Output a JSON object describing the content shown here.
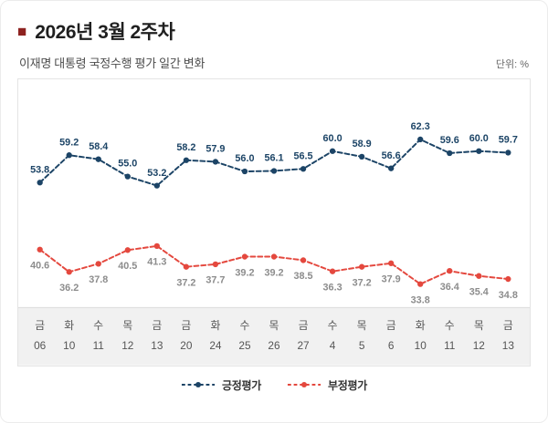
{
  "header": {
    "bullet": "■",
    "title": "2026년 3월 2주차",
    "subtitle": "이재명 대통령 국정수행 평가 일간 변화",
    "unit_label": "단위: %"
  },
  "chart_data": {
    "type": "line",
    "title": "이재명 대통령 국정수행 평가 일간 변화",
    "unit": "%",
    "days": [
      "금",
      "화",
      "수",
      "목",
      "금",
      "금",
      "화",
      "수",
      "목",
      "금",
      "수",
      "목",
      "금",
      "화",
      "수",
      "목",
      "금"
    ],
    "dates": [
      "06",
      "10",
      "11",
      "12",
      "13",
      "20",
      "24",
      "25",
      "26",
      "27",
      "4",
      "5",
      "6",
      "10",
      "11",
      "12",
      "13"
    ],
    "series": [
      {
        "name": "긍정평가",
        "color": "#1c4466",
        "label_color": "#1c4466",
        "label_position": "above",
        "values": [
          53.8,
          59.2,
          58.4,
          55.0,
          53.2,
          58.2,
          57.9,
          56.0,
          56.1,
          56.5,
          60.0,
          58.9,
          56.6,
          62.3,
          59.6,
          60.0,
          59.7
        ]
      },
      {
        "name": "부정평가",
        "color": "#e4483e",
        "label_color": "#8c8c8c",
        "label_position": "below",
        "values": [
          40.6,
          36.2,
          37.8,
          40.5,
          41.3,
          37.2,
          37.7,
          39.2,
          39.2,
          38.5,
          36.3,
          37.2,
          37.9,
          33.8,
          36.4,
          35.4,
          34.8
        ]
      }
    ],
    "ylim": [
      32,
      66
    ],
    "grid": false,
    "legend_position": "bottom"
  },
  "legend": {
    "items": [
      {
        "label": "긍정평가",
        "color": "#1c4466"
      },
      {
        "label": "부정평가",
        "color": "#e4483e"
      }
    ]
  }
}
